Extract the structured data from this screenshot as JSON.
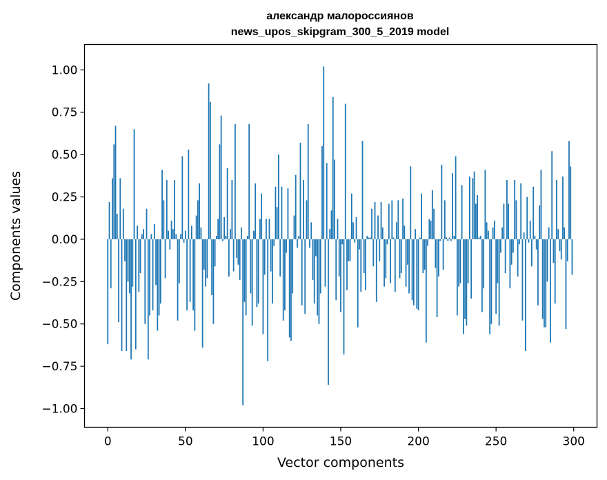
{
  "chart_data": {
    "type": "bar",
    "title": "александр малороссиянов",
    "subtitle": "news_upos_skipgram_300_5_2019 model",
    "xlabel": "Vector components",
    "ylabel": "Components values",
    "xlim": [
      -15,
      315
    ],
    "ylim": [
      -1.11,
      1.15
    ],
    "xticks": [
      0,
      50,
      100,
      150,
      200,
      250,
      300
    ],
    "xtick_labels": [
      "0",
      "50",
      "100",
      "150",
      "200",
      "250",
      "300"
    ],
    "yticks": [
      1.0,
      0.75,
      0.5,
      0.25,
      0.0,
      -0.25,
      -0.5,
      -0.75,
      -1.0
    ],
    "ytick_labels": [
      "1.00",
      "0.75",
      "0.50",
      "0.25",
      "0.00",
      "−0.25",
      "−0.50",
      "−0.75",
      "−1.00"
    ],
    "bar_color": "#1f77b4",
    "grid": false,
    "x": [
      0,
      1,
      2,
      3,
      4,
      5,
      6,
      7,
      8,
      9,
      10,
      11,
      12,
      13,
      14,
      15,
      16,
      17,
      18,
      19,
      20,
      21,
      22,
      23,
      24,
      25,
      26,
      27,
      28,
      29,
      30,
      31,
      32,
      33,
      34,
      35,
      36,
      37,
      38,
      39,
      40,
      41,
      42,
      43,
      44,
      45,
      46,
      47,
      48,
      49,
      50,
      51,
      52,
      53,
      54,
      55,
      56,
      57,
      58,
      59,
      60,
      61,
      62,
      63,
      64,
      65,
      66,
      67,
      68,
      69,
      70,
      71,
      72,
      73,
      74,
      75,
      76,
      77,
      78,
      79,
      80,
      81,
      82,
      83,
      84,
      85,
      86,
      87,
      88,
      89,
      90,
      91,
      92,
      93,
      94,
      95,
      96,
      97,
      98,
      99,
      100,
      101,
      102,
      103,
      104,
      105,
      106,
      107,
      108,
      109,
      110,
      111,
      112,
      113,
      114,
      115,
      116,
      117,
      118,
      119,
      120,
      121,
      122,
      123,
      124,
      125,
      126,
      127,
      128,
      129,
      130,
      131,
      132,
      133,
      134,
      135,
      136,
      137,
      138,
      139,
      140,
      141,
      142,
      143,
      144,
      145,
      146,
      147,
      148,
      149,
      150,
      151,
      152,
      153,
      154,
      155,
      156,
      157,
      158,
      159,
      160,
      161,
      162,
      163,
      164,
      165,
      166,
      167,
      168,
      169,
      170,
      171,
      172,
      173,
      174,
      175,
      176,
      177,
      178,
      179,
      180,
      181,
      182,
      183,
      184,
      185,
      186,
      187,
      188,
      189,
      190,
      191,
      192,
      193,
      194,
      195,
      196,
      197,
      198,
      199,
      200,
      201,
      202,
      203,
      204,
      205,
      206,
      207,
      208,
      209,
      210,
      211,
      212,
      213,
      214,
      215,
      216,
      217,
      218,
      219,
      220,
      221,
      222,
      223,
      224,
      225,
      226,
      227,
      228,
      229,
      230,
      231,
      232,
      233,
      234,
      235,
      236,
      237,
      238,
      239,
      240,
      241,
      242,
      243,
      244,
      245,
      246,
      247,
      248,
      249,
      250,
      251,
      252,
      253,
      254,
      255,
      256,
      257,
      258,
      259,
      260,
      261,
      262,
      263,
      264,
      265,
      266,
      267,
      268,
      269,
      270,
      271,
      272,
      273,
      274,
      275,
      276,
      277,
      278,
      279,
      280,
      281,
      282,
      283,
      284,
      285,
      286,
      287,
      288,
      289,
      290,
      291,
      292,
      293,
      294,
      295,
      296,
      297,
      298,
      299
    ],
    "values": [
      -0.62,
      0.22,
      -0.29,
      0.36,
      0.56,
      0.67,
      0.15,
      -0.49,
      0.36,
      -0.66,
      0.18,
      -0.13,
      -0.66,
      -0.25,
      -0.32,
      -0.71,
      -0.28,
      0.65,
      -0.65,
      0.08,
      -0.31,
      -0.2,
      0.03,
      0.06,
      -0.5,
      0.18,
      -0.71,
      -0.45,
      0.03,
      -0.42,
      0.09,
      -0.27,
      -0.54,
      -0.45,
      -0.38,
      0.41,
      0.23,
      -0.23,
      0.35,
      0.05,
      -0.06,
      0.11,
      0.06,
      0.35,
      0.03,
      -0.48,
      -0.26,
      0.03,
      0.49,
      -0.02,
      0.05,
      -0.42,
      0.53,
      -0.37,
      0.08,
      -0.42,
      -0.54,
      0.14,
      0.23,
      0.33,
      0.07,
      -0.64,
      -0.18,
      -0.28,
      -0.23,
      0.92,
      0.81,
      -0.33,
      -0.5,
      -0.16,
      0.02,
      0.12,
      0.56,
      0.73,
      -0.01,
      0.13,
      0.02,
      0.42,
      -0.22,
      0.06,
      0.35,
      -0.19,
      0.68,
      -0.11,
      -0.15,
      -0.24,
      0.07,
      -0.98,
      -0.37,
      -0.45,
      0.02,
      0.68,
      -0.32,
      -0.51,
      0.05,
      0.33,
      -0.4,
      -0.38,
      0.12,
      0.27,
      -0.56,
      -0.21,
      0.12,
      -0.72,
      0.12,
      -0.19,
      -0.38,
      -0.04,
      0.31,
      0.19,
      0.5,
      -0.22,
      0.31,
      -0.48,
      -0.42,
      -0.08,
      0.3,
      -0.58,
      -0.6,
      -0.32,
      0.14,
      0.38,
      -0.05,
      0.02,
      0.57,
      -0.39,
      0.35,
      -0.44,
      0.23,
      0.68,
      -0.05,
      0.1,
      -0.24,
      -0.38,
      -0.1,
      -0.45,
      -0.5,
      -0.32,
      0.55,
      1.02,
      -0.28,
      0.45,
      -0.86,
      0.06,
      0.17,
      0.84,
      0.47,
      -0.36,
      0.12,
      -0.22,
      -0.43,
      -0.03,
      -0.68,
      0.8,
      -0.3,
      -0.13,
      -0.13,
      0.27,
      0.1,
      -0.02,
      0.13,
      -0.52,
      -0.06,
      -0.31,
      0.58,
      -0.2,
      -0.3,
      0.02,
      0.01,
      0.01,
      0.18,
      -0.16,
      0.22,
      -0.37,
      0.14,
      -0.13,
      0.22,
      0.07,
      -0.28,
      -0.23,
      -0.03,
      0.21,
      -0.26,
      0.23,
      0.01,
      -0.31,
      0.1,
      0.23,
      -0.23,
      -0.2,
      0.24,
      0.08,
      -0.28,
      -0.15,
      -0.32,
      0.43,
      -0.36,
      -0.39,
      0.06,
      -0.41,
      -0.42,
      0.01,
      0.27,
      -0.2,
      -0.18,
      -0.61,
      -0.04,
      0.12,
      0.11,
      0.29,
      0.18,
      -0.17,
      -0.46,
      -0.22,
      -0.01,
      0.44,
      -0.18,
      0.23,
      0.01,
      -0.01,
      0.01,
      -0.01,
      0.39,
      0.02,
      0.49,
      -0.45,
      -0.28,
      -0.26,
      0.32,
      -0.56,
      -0.47,
      -0.51,
      -0.26,
      0.37,
      -0.35,
      0.36,
      0.4,
      0.21,
      0.26,
      0.01,
      0.02,
      -0.43,
      -0.29,
      0.41,
      0.1,
      0.05,
      -0.56,
      -0.5,
      0.07,
      0.11,
      -0.44,
      -0.26,
      -0.51,
      -0.08,
      0.07,
      0.21,
      -0.2,
      0.35,
      0.21,
      -0.29,
      -0.15,
      -0.08,
      0.35,
      0.23,
      -0.22,
      -0.03,
      0.33,
      -0.48,
      0.04,
      -0.66,
      0.25,
      -0.02,
      0.11,
      -0.16,
      0.31,
      0.02,
      -0.06,
      -0.39,
      0.2,
      0.41,
      -0.47,
      -0.52,
      -0.52,
      -0.25,
      0.07,
      -0.61,
      0.52,
      -0.14,
      -0.38,
      0.35,
      0.06,
      -0.07,
      -0.12,
      0.37,
      0.07,
      -0.53,
      -0.13,
      0.58,
      0.43,
      -0.21
    ]
  }
}
